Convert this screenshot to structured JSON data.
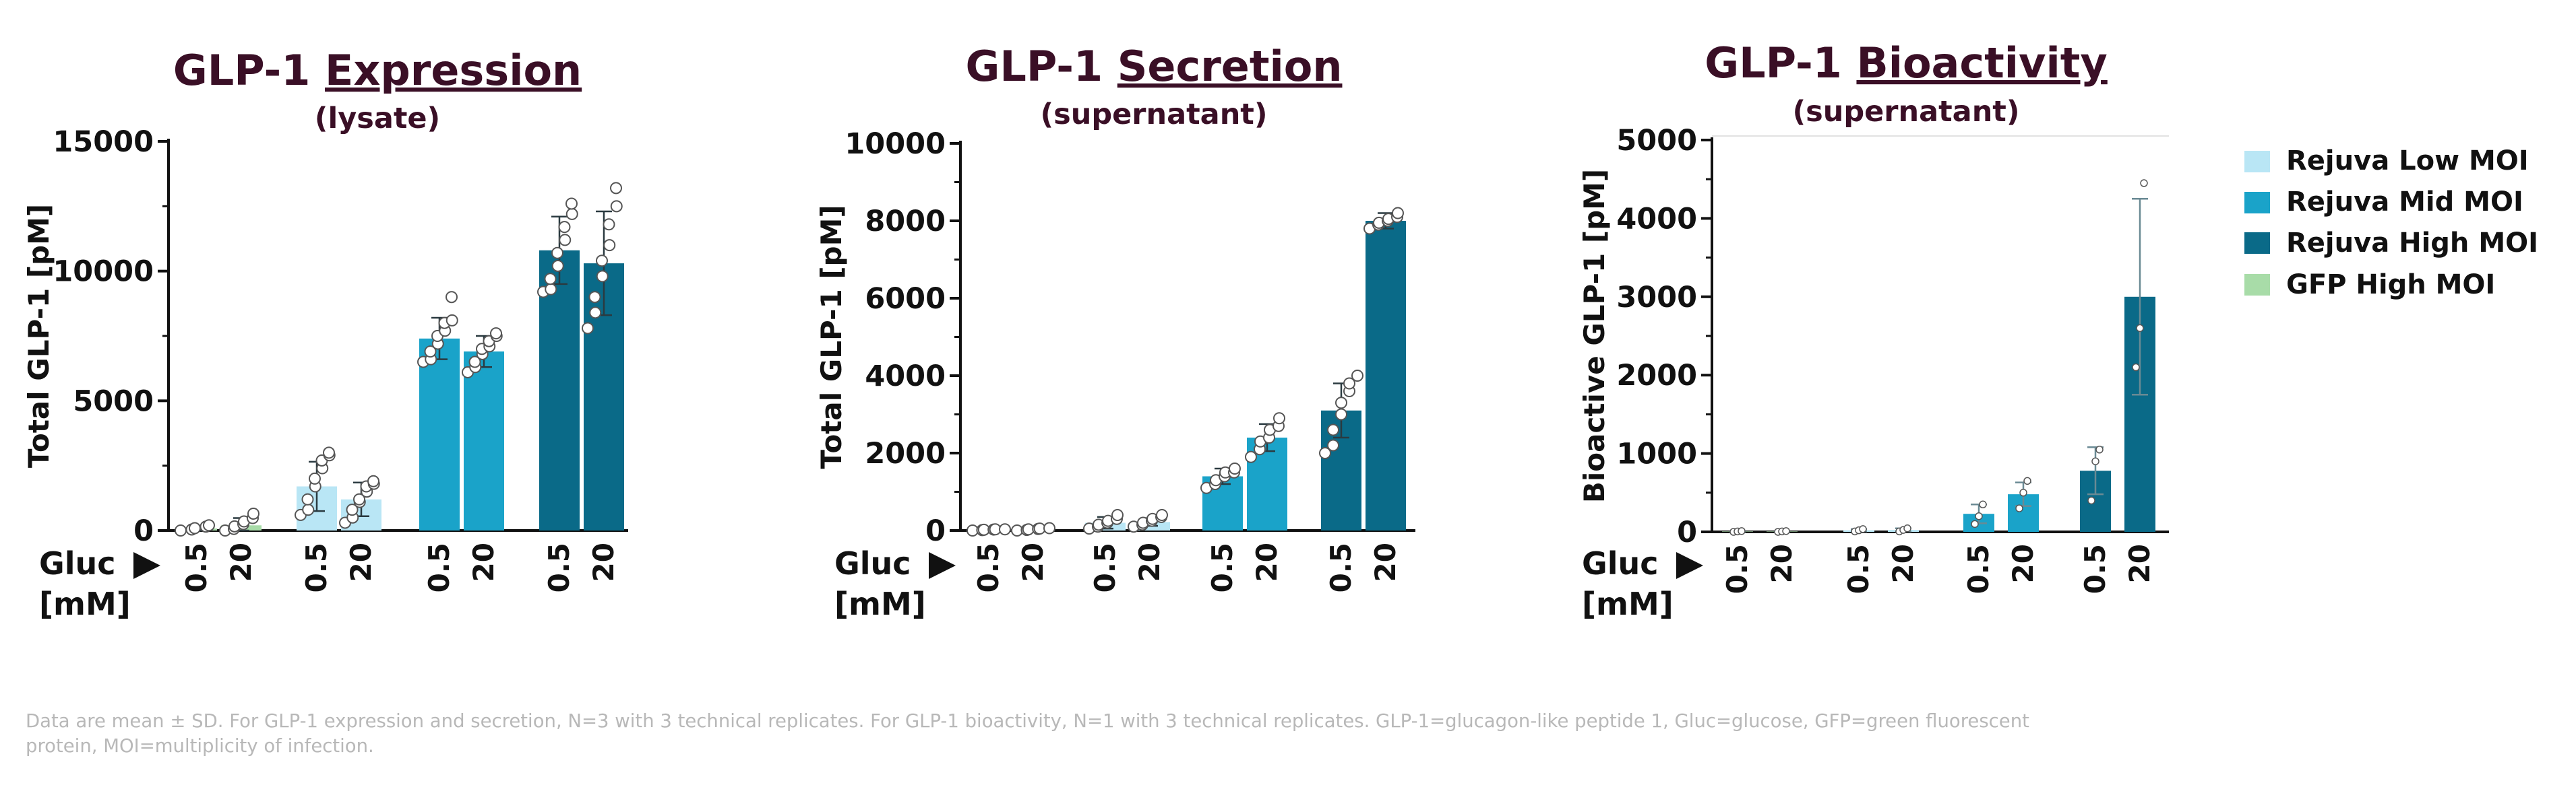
{
  "colors": {
    "title": "#3a0f26",
    "rejuva_low": "#b9e6f5",
    "rejuva_mid": "#1aa3c9",
    "rejuva_high": "#0a6a88",
    "gfp_high": "#a8dca8",
    "axis": "#111111",
    "footnote": "#b8b8b8"
  },
  "legend": [
    {
      "label": "Rejuva Low MOI",
      "color": "#b9e6f5"
    },
    {
      "label": "Rejuva Mid MOI",
      "color": "#1aa3c9"
    },
    {
      "label": "Rejuva High MOI",
      "color": "#0a6a88"
    },
    {
      "label": "GFP High MOI",
      "color": "#a8dca8"
    }
  ],
  "gluc_label": "Gluc",
  "gluc_unit": "[mM]",
  "footnote": [
    "Data are mean ± SD. For GLP-1 expression and secretion, N=3 with 3 technical replicates. For GLP-1 bioactivity, N=1 with 3 technical replicates. GLP-1=glucagon-like peptide 1, Gluc=glucose, GFP=green fluorescent",
    "protein, MOI=multiplicity of infection."
  ],
  "chart_data": [
    {
      "type": "bar",
      "title_prefix": "GLP-1 ",
      "title_emph": "Expression",
      "subtitle": "(lysate)",
      "ylabel": "Total GLP-1 [pM]",
      "ylim": [
        0,
        15000
      ],
      "yticks": [
        "0",
        "5000",
        "10000",
        "15000"
      ],
      "xlabel": "Gluc [mM]",
      "groups": [
        {
          "group": "GFP High MOI",
          "bars": [
            {
              "gluc": "0.5",
              "mean": 80,
              "sd": 80,
              "points": [
                0,
                40,
                90,
                150,
                200
              ]
            },
            {
              "gluc": "20",
              "mean": 200,
              "sd": 280,
              "points": [
                0,
                60,
                160,
                250,
                350,
                480,
                650
              ]
            }
          ]
        },
        {
          "group": "Rejuva Low MOI",
          "bars": [
            {
              "gluc": "0.5",
              "mean": 1700,
              "sd": 950,
              "points": [
                600,
                800,
                1200,
                1700,
                2000,
                2400,
                2700,
                2900,
                3000
              ]
            },
            {
              "gluc": "20",
              "mean": 1200,
              "sd": 650,
              "points": [
                300,
                500,
                800,
                1100,
                1200,
                1500,
                1700,
                1800,
                1900
              ]
            }
          ]
        },
        {
          "group": "Rejuva Mid MOI",
          "bars": [
            {
              "gluc": "0.5",
              "mean": 7400,
              "sd": 800,
              "points": [
                6500,
                6600,
                6900,
                7200,
                7500,
                7700,
                8000,
                8100,
                9000
              ]
            },
            {
              "gluc": "20",
              "mean": 6900,
              "sd": 600,
              "points": [
                6100,
                6300,
                6500,
                6800,
                7000,
                7100,
                7300,
                7500,
                7600
              ]
            }
          ]
        },
        {
          "group": "Rejuva High MOI",
          "bars": [
            {
              "gluc": "0.5",
              "mean": 10800,
              "sd": 1300,
              "points": [
                9200,
                9300,
                9700,
                10200,
                10700,
                11200,
                11700,
                12200,
                12600
              ]
            },
            {
              "gluc": "20",
              "mean": 10300,
              "sd": 2000,
              "points": [
                7800,
                8400,
                9000,
                9800,
                10400,
                11000,
                11800,
                12500,
                13200
              ]
            }
          ]
        }
      ]
    },
    {
      "type": "bar",
      "title_prefix": "GLP-1 ",
      "title_emph": "Secretion",
      "subtitle": "(supernatant)",
      "ylabel": "Total GLP-1 [pM]",
      "ylim": [
        0,
        10000
      ],
      "yticks": [
        "0",
        "2000",
        "4000",
        "6000",
        "8000",
        "10000"
      ],
      "xlabel": "Gluc [mM]",
      "groups": [
        {
          "group": "GFP High MOI",
          "bars": [
            {
              "gluc": "0.5",
              "mean": 20,
              "sd": 10,
              "points": [
                0,
                10,
                20,
                25,
                30,
                30
              ]
            },
            {
              "gluc": "20",
              "mean": 30,
              "sd": 20,
              "points": [
                0,
                15,
                30,
                40,
                50,
                60
              ]
            }
          ]
        },
        {
          "group": "Rejuva Low MOI",
          "bars": [
            {
              "gluc": "0.5",
              "mean": 200,
              "sd": 150,
              "points": [
                50,
                100,
                150,
                200,
                250,
                300,
                400
              ]
            },
            {
              "gluc": "20",
              "mean": 220,
              "sd": 100,
              "points": [
                100,
                150,
                200,
                250,
                300,
                350,
                400
              ]
            }
          ]
        },
        {
          "group": "Rejuva Mid MOI",
          "bars": [
            {
              "gluc": "0.5",
              "mean": 1400,
              "sd": 200,
              "points": [
                1100,
                1200,
                1300,
                1400,
                1500,
                1500,
                1600
              ]
            },
            {
              "gluc": "20",
              "mean": 2400,
              "sd": 350,
              "points": [
                1900,
                2100,
                2300,
                2400,
                2600,
                2700,
                2900
              ]
            }
          ]
        },
        {
          "group": "Rejuva High MOI",
          "bars": [
            {
              "gluc": "0.5",
              "mean": 3100,
              "sd": 700,
              "points": [
                2000,
                2200,
                2600,
                3000,
                3300,
                3600,
                3800,
                4000
              ]
            },
            {
              "gluc": "20",
              "mean": 8000,
              "sd": 200,
              "points": [
                7800,
                7900,
                7950,
                8000,
                8050,
                8100,
                8200
              ]
            }
          ]
        }
      ]
    },
    {
      "type": "bar",
      "title_prefix": "GLP-1 ",
      "title_emph": "Bioactivity",
      "subtitle": "(supernatant)",
      "ylabel": "Bioactive GLP-1 [pM]",
      "ylim": [
        0,
        5000
      ],
      "yticks": [
        "0",
        "1000",
        "2000",
        "3000",
        "4000",
        "5000"
      ],
      "xlabel": "Gluc [mM]",
      "groups": [
        {
          "group": "GFP High MOI",
          "bars": [
            {
              "gluc": "0.5",
              "mean": 5,
              "sd": 5,
              "points": [
                0,
                5,
                10
              ]
            },
            {
              "gluc": "20",
              "mean": 5,
              "sd": 5,
              "points": [
                0,
                5,
                10
              ]
            }
          ]
        },
        {
          "group": "Rejuva Low MOI",
          "bars": [
            {
              "gluc": "0.5",
              "mean": 20,
              "sd": 15,
              "points": [
                5,
                20,
                35
              ]
            },
            {
              "gluc": "20",
              "mean": 25,
              "sd": 20,
              "points": [
                5,
                25,
                45
              ]
            }
          ]
        },
        {
          "group": "Rejuva Mid MOI",
          "bars": [
            {
              "gluc": "0.5",
              "mean": 230,
              "sd": 120,
              "points": [
                100,
                200,
                350
              ]
            },
            {
              "gluc": "20",
              "mean": 480,
              "sd": 150,
              "points": [
                300,
                500,
                650
              ]
            }
          ]
        },
        {
          "group": "Rejuva High MOI",
          "bars": [
            {
              "gluc": "0.5",
              "mean": 780,
              "sd": 300,
              "points": [
                400,
                900,
                1050
              ]
            },
            {
              "gluc": "20",
              "mean": 3000,
              "sd": 1250,
              "points": [
                2100,
                2600,
                4450
              ]
            }
          ]
        }
      ]
    }
  ]
}
